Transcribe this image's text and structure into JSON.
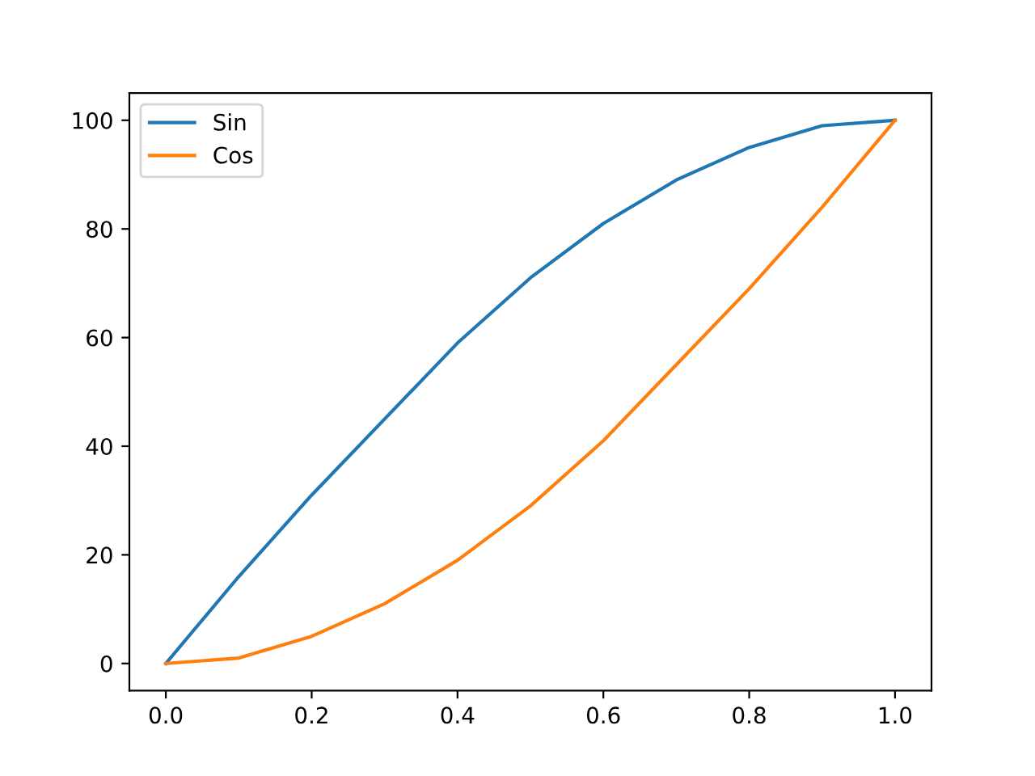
{
  "chart_data": {
    "type": "line",
    "x": [
      0,
      0.1,
      0.2,
      0.3,
      0.4,
      0.5,
      0.6,
      0.7,
      0.8,
      0.9,
      1.0
    ],
    "series": [
      {
        "name": "Sin",
        "color": "#1f77b4",
        "values": [
          0,
          16,
          31,
          45,
          59,
          71,
          81,
          89,
          95,
          99,
          100
        ]
      },
      {
        "name": "Cos",
        "color": "#ff7f0e",
        "values": [
          0,
          1,
          5,
          11,
          19,
          29,
          41,
          55,
          69,
          84,
          100
        ]
      }
    ],
    "xlim": [
      -0.05,
      1.05
    ],
    "ylim": [
      -5,
      105
    ],
    "xticks": [
      {
        "value": 0,
        "label": "0.0"
      },
      0.2,
      0.4,
      0.6,
      0.8,
      {
        "value": 1,
        "label": "1.0"
      }
    ],
    "yticks": [
      0,
      20,
      40,
      60,
      80,
      100
    ],
    "legend": "upper left",
    "grid": false
  }
}
